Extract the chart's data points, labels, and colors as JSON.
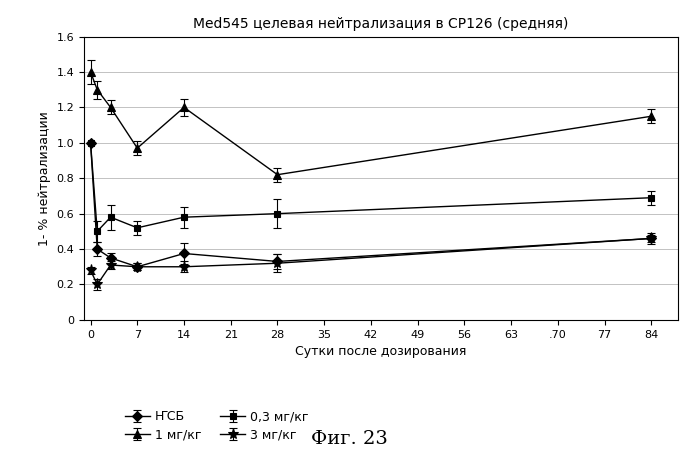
{
  "title": "Med545 целевая нейтрализация в СР126 (средняя)",
  "xlabel": "Сутки после дозирования",
  "ylabel": "1- % нейтрализации",
  "fig_label": "Фиг. 23",
  "xlim": [
    -1,
    88
  ],
  "ylim": [
    0,
    1.6
  ],
  "xticks": [
    0,
    7,
    14,
    21,
    28,
    35,
    42,
    49,
    56,
    63,
    70,
    77,
    84
  ],
  "xtick_labels": [
    "0",
    "7",
    "14",
    "21",
    "28",
    "35",
    "42",
    "49",
    "56",
    "63",
    ".70",
    "77",
    "84"
  ],
  "yticks": [
    0,
    0.2,
    0.4,
    0.6,
    0.8,
    1.0,
    1.2,
    1.4,
    1.6
  ],
  "series": [
    {
      "label": "ҤСБ",
      "marker": "D",
      "markersize": 5,
      "color": "#000000",
      "x": [
        0,
        1,
        3,
        7,
        14,
        28,
        84
      ],
      "y": [
        1.0,
        0.4,
        0.35,
        0.3,
        0.375,
        0.33,
        0.46
      ],
      "yerr": [
        0.0,
        0.04,
        0.03,
        0.02,
        0.06,
        0.04,
        0.03
      ],
      "filled": true
    },
    {
      "label": "1 мг/кг",
      "marker": "^",
      "markersize": 6,
      "color": "#000000",
      "x": [
        0,
        1,
        3,
        7,
        14,
        28,
        84
      ],
      "y": [
        1.4,
        1.3,
        1.2,
        0.97,
        1.2,
        0.82,
        1.15
      ],
      "yerr": [
        0.07,
        0.05,
        0.04,
        0.04,
        0.05,
        0.04,
        0.04
      ],
      "filled": true
    },
    {
      "label": "0,3 мг/кг",
      "marker": "s",
      "markersize": 5,
      "color": "#000000",
      "x": [
        0,
        1,
        3,
        7,
        14,
        28,
        84
      ],
      "y": [
        1.0,
        0.5,
        0.58,
        0.52,
        0.58,
        0.6,
        0.69
      ],
      "yerr": [
        0.0,
        0.06,
        0.07,
        0.04,
        0.06,
        0.08,
        0.04
      ],
      "filled": true
    },
    {
      "label": "3 мг/кг",
      "marker": "*",
      "markersize": 8,
      "color": "#000000",
      "x": [
        0,
        1,
        3,
        7,
        14,
        28,
        84
      ],
      "y": [
        0.28,
        0.2,
        0.31,
        0.3,
        0.3,
        0.32,
        0.46
      ],
      "yerr": [
        0.02,
        0.03,
        0.02,
        0.02,
        0.03,
        0.05,
        0.02
      ],
      "filled": true
    }
  ],
  "background_color": "#ffffff",
  "grid_color": "#aaaaaa"
}
